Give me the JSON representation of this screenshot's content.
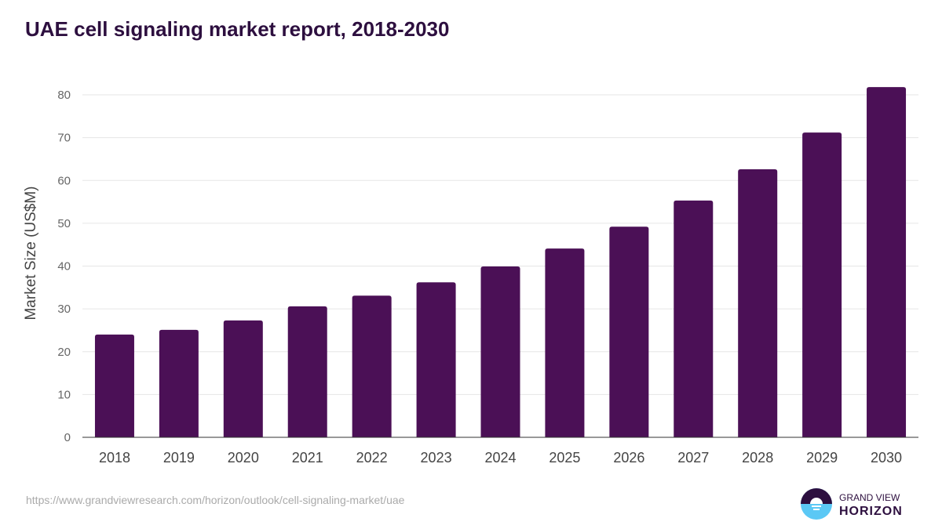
{
  "chart_data": {
    "type": "bar",
    "title": "UAE cell signaling market report, 2018-2030",
    "xlabel": "",
    "ylabel": "Market Size (US$M)",
    "categories": [
      "2018",
      "2019",
      "2020",
      "2021",
      "2022",
      "2023",
      "2024",
      "2025",
      "2026",
      "2027",
      "2028",
      "2029",
      "2030"
    ],
    "values": [
      24.0,
      25.1,
      27.3,
      30.6,
      33.1,
      36.2,
      39.9,
      44.1,
      49.2,
      55.3,
      62.6,
      71.2,
      81.8
    ],
    "ylim": [
      0,
      80
    ],
    "yticks": [
      0,
      10,
      20,
      30,
      40,
      50,
      60,
      70,
      80
    ],
    "grid": true,
    "bar_color": "#4b1056"
  },
  "source_url": "https://www.grandviewresearch.com/horizon/outlook/cell-signaling-market/uae",
  "logo": {
    "line1": "GRAND VIEW",
    "line2": "HORIZON"
  }
}
